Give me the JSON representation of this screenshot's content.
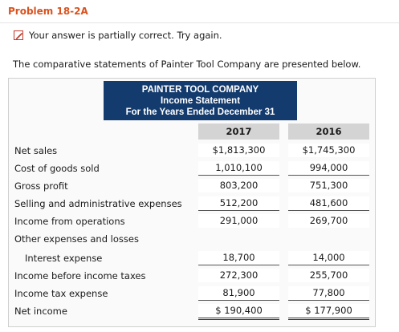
{
  "problem": {
    "title": "Problem 18-2A"
  },
  "feedback": {
    "text": "Your answer is partially correct.  Try again."
  },
  "intro": {
    "text": "The comparative statements of Painter Tool Company are presented below."
  },
  "statement": {
    "company": "PAINTER TOOL COMPANY",
    "name": "Income Statement",
    "period": "For the Years Ended December 31",
    "columns": [
      "2017",
      "2016"
    ],
    "rows": [
      {
        "label": "Net sales",
        "v2017": "$1,813,300",
        "v2016": "$1,745,300"
      },
      {
        "label": "Cost of goods sold",
        "v2017": "1,010,100",
        "v2016": "994,000"
      },
      {
        "label": "Gross profit",
        "v2017": "803,200",
        "v2016": "751,300"
      },
      {
        "label": "Selling and administrative expenses",
        "v2017": "512,200",
        "v2016": "481,600"
      },
      {
        "label": "Income from operations",
        "v2017": "291,000",
        "v2016": "269,700"
      },
      {
        "label": "Other expenses and losses",
        "v2017": "",
        "v2016": ""
      },
      {
        "label": "Interest expense",
        "v2017": "18,700",
        "v2016": "14,000"
      },
      {
        "label": "Income before income taxes",
        "v2017": "272,300",
        "v2016": "255,700"
      },
      {
        "label": "Income tax expense",
        "v2017": "81,900",
        "v2016": "77,800"
      },
      {
        "label": "Net income",
        "v2017": "$ 190,400",
        "v2016": "$ 177,900"
      }
    ]
  },
  "colors": {
    "title": "#d9531e",
    "header_bg": "#143b6e",
    "feedback_icon": "#c0392b"
  },
  "icons": {
    "feedback": "pencil-icon"
  }
}
